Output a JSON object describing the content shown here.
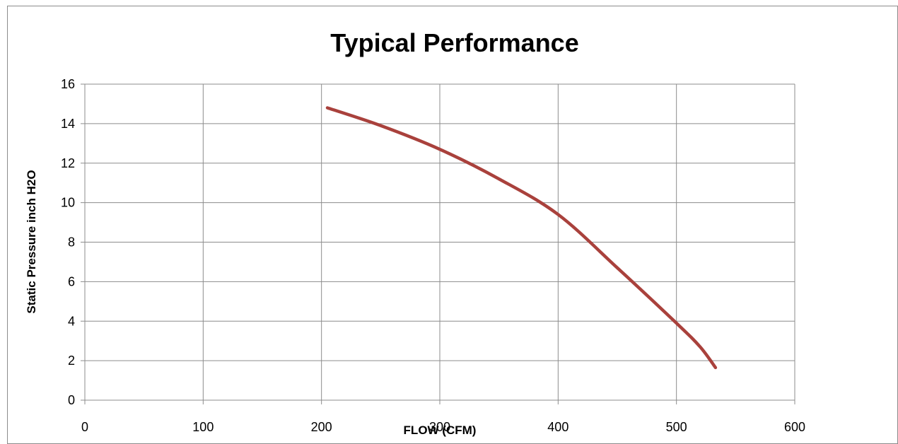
{
  "chart_data": {
    "type": "line",
    "title": "Typical Performance",
    "xlabel": "FLOW (CFM)",
    "ylabel": "Static Pressure inch H2O",
    "xlim": [
      0,
      600
    ],
    "ylim": [
      0,
      16
    ],
    "xticks": [
      0,
      100,
      200,
      300,
      400,
      500,
      600
    ],
    "yticks": [
      0,
      2,
      4,
      6,
      8,
      10,
      12,
      14,
      16
    ],
    "grid": true,
    "legend": "none",
    "series": [
      {
        "color": "#a9413c",
        "x": [
          205,
          250,
          300,
          350,
          400,
          450,
          500,
          520,
          533
        ],
        "y": [
          14.8,
          13.9,
          12.7,
          11.2,
          9.4,
          6.7,
          3.9,
          2.7,
          1.65
        ]
      }
    ]
  }
}
